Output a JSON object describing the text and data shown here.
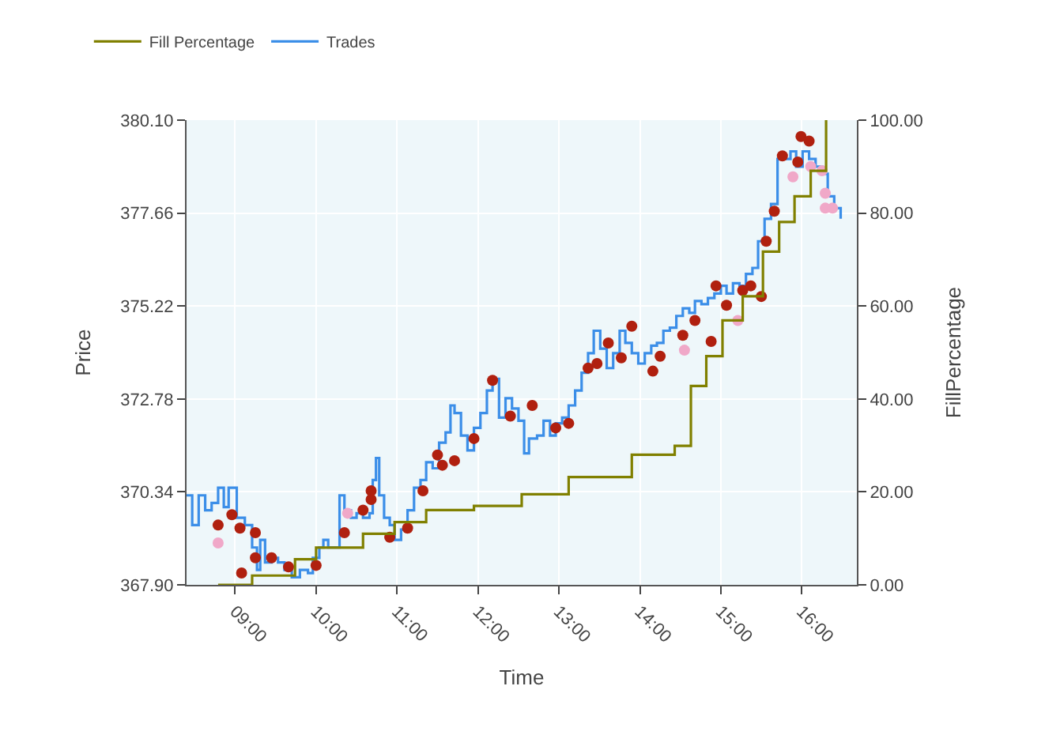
{
  "chart_data": {
    "type": "step",
    "xlabel": "Time",
    "ylabel": "Price",
    "y2label": "FillPercentage",
    "xlim": [
      8.4,
      16.68
    ],
    "xticks": [
      {
        "value": 9,
        "label": "09:00"
      },
      {
        "value": 10,
        "label": "10:00"
      },
      {
        "value": 11,
        "label": "11:00"
      },
      {
        "value": 12,
        "label": "12:00"
      },
      {
        "value": 13,
        "label": "13:00"
      },
      {
        "value": 14,
        "label": "14:00"
      },
      {
        "value": 15,
        "label": "15:00"
      },
      {
        "value": 16,
        "label": "16:00"
      }
    ],
    "ylim": [
      367.9,
      380.1
    ],
    "yticks": [
      {
        "value": 367.9,
        "label": "367.90"
      },
      {
        "value": 370.34,
        "label": "370.34"
      },
      {
        "value": 372.78,
        "label": "372.78"
      },
      {
        "value": 375.22,
        "label": "375.22"
      },
      {
        "value": 377.66,
        "label": "377.66"
      },
      {
        "value": 380.1,
        "label": "380.10"
      }
    ],
    "y2lim": [
      0,
      100
    ],
    "y2ticks": [
      {
        "value": 0,
        "label": "0.00"
      },
      {
        "value": 20,
        "label": "20.00"
      },
      {
        "value": 40,
        "label": "40.00"
      },
      {
        "value": 60,
        "label": "60.00"
      },
      {
        "value": 80,
        "label": "80.00"
      },
      {
        "value": 100,
        "label": "100.00"
      }
    ],
    "grid": true,
    "legend": "top left",
    "series": [
      {
        "name": "Fill Percentage",
        "axis": "y2",
        "color": "#808000",
        "marker": "none",
        "x": [
          8.79,
          9.21,
          9.74,
          10.0,
          10.58,
          10.97,
          11.36,
          11.95,
          12.54,
          13.12,
          13.9,
          14.43,
          14.63,
          14.82,
          15.02,
          15.27,
          15.52,
          15.72,
          15.91,
          16.11,
          16.3
        ],
        "values": [
          0,
          2,
          5.5,
          8,
          11,
          13.5,
          16.1,
          17,
          19.5,
          23.2,
          28,
          29.9,
          42.8,
          49.2,
          56.9,
          62.1,
          71.7,
          78.1,
          83.6,
          89.1,
          100
        ]
      },
      {
        "name": "Trades",
        "color": "#3b8ee8",
        "marker": "none",
        "x": [
          8.4,
          8.47,
          8.55,
          8.63,
          8.71,
          8.79,
          8.86,
          8.92,
          9.02,
          9.12,
          9.21,
          9.27,
          9.31,
          9.37,
          9.45,
          9.53,
          9.61,
          9.7,
          9.8,
          9.9,
          9.96,
          10.04,
          10.09,
          10.15,
          10.23,
          10.29,
          10.35,
          10.43,
          10.5,
          10.58,
          10.66,
          10.7,
          10.74,
          10.78,
          10.84,
          10.91,
          10.97,
          11.05,
          11.13,
          11.21,
          11.29,
          11.36,
          11.44,
          11.52,
          11.6,
          11.66,
          11.71,
          11.79,
          11.87,
          11.95,
          12.03,
          12.11,
          12.18,
          12.26,
          12.34,
          12.42,
          12.5,
          12.57,
          12.63,
          12.73,
          12.81,
          12.89,
          12.96,
          13.04,
          13.12,
          13.2,
          13.28,
          13.36,
          13.43,
          13.51,
          13.59,
          13.67,
          13.75,
          13.82,
          13.9,
          13.98,
          14.06,
          14.14,
          14.21,
          14.29,
          14.37,
          14.45,
          14.53,
          14.61,
          14.68,
          14.76,
          14.84,
          14.92,
          15.0,
          15.07,
          15.15,
          15.23,
          15.31,
          15.39,
          15.46,
          15.54,
          15.62,
          15.7,
          15.78,
          15.86,
          15.93,
          16.01,
          16.09,
          16.17,
          16.25,
          16.32,
          16.4,
          16.48
        ],
        "values": [
          370.25,
          369.47,
          370.25,
          369.86,
          370.05,
          370.45,
          369.94,
          370.45,
          369.66,
          369.47,
          368.88,
          368.29,
          369.08,
          368.49,
          368.61,
          368.49,
          368.29,
          368.1,
          368.29,
          368.21,
          368.61,
          368.88,
          369.08,
          368.88,
          368.88,
          370.25,
          369.86,
          369.66,
          369.78,
          369.66,
          369.78,
          370.65,
          371.23,
          370.25,
          369.66,
          369.47,
          369.08,
          369.35,
          369.86,
          370.45,
          370.65,
          371.12,
          370.96,
          371.63,
          371.9,
          372.61,
          372.41,
          371.82,
          371.43,
          372.02,
          372.41,
          373.0,
          373.31,
          372.29,
          372.8,
          372.53,
          372.21,
          371.35,
          371.74,
          371.82,
          372.21,
          371.82,
          372.14,
          372.29,
          372.61,
          373.0,
          373.47,
          373.98,
          374.57,
          374.1,
          373.59,
          373.98,
          374.57,
          374.25,
          373.98,
          373.71,
          373.98,
          374.18,
          374.25,
          374.57,
          374.65,
          374.96,
          375.16,
          375.04,
          375.35,
          375.27,
          375.43,
          375.55,
          375.75,
          375.55,
          375.82,
          375.75,
          376.06,
          376.22,
          376.92,
          377.51,
          377.9,
          379.08,
          379.08,
          379.28,
          378.88,
          379.28,
          379.08,
          378.88,
          378.69,
          378.1,
          377.79,
          377.51
        ]
      },
      {
        "type": "scatter",
        "color": "#b0200f",
        "marker": "circle",
        "x": [
          8.79,
          8.96,
          9.06,
          9.25,
          9.08,
          9.25,
          9.45,
          9.66,
          10.0,
          10.35,
          10.58,
          10.68,
          10.68,
          10.91,
          11.13,
          11.32,
          11.5,
          11.56,
          11.71,
          11.95,
          12.18,
          12.4,
          12.67,
          12.96,
          13.12,
          13.36,
          13.47,
          13.61,
          13.77,
          13.9,
          14.16,
          14.25,
          14.53,
          14.68,
          14.88,
          14.94,
          15.07,
          15.27,
          15.37,
          15.5,
          15.56,
          15.66,
          15.76,
          15.95,
          15.99,
          16.09
        ],
        "values": [
          369.47,
          369.74,
          369.39,
          369.27,
          368.21,
          368.61,
          368.61,
          368.37,
          368.41,
          369.27,
          369.86,
          370.14,
          370.37,
          369.15,
          369.39,
          370.37,
          371.31,
          371.04,
          371.16,
          371.74,
          373.27,
          372.33,
          372.61,
          372.02,
          372.14,
          373.59,
          373.71,
          374.25,
          373.86,
          374.69,
          373.51,
          373.9,
          374.45,
          374.84,
          374.29,
          375.75,
          375.24,
          375.63,
          375.75,
          375.47,
          376.92,
          377.71,
          379.16,
          379.0,
          379.67,
          379.55
        ]
      },
      {
        "type": "scatter",
        "color": "#f0a8c8",
        "marker": "circle",
        "x": [
          8.79,
          10.39,
          14.55,
          15.21,
          15.89,
          16.11,
          16.25,
          16.29,
          16.29,
          16.38
        ],
        "values": [
          369.0,
          369.78,
          374.06,
          374.84,
          378.61,
          378.88,
          378.77,
          378.18,
          377.79,
          377.79
        ]
      }
    ]
  }
}
